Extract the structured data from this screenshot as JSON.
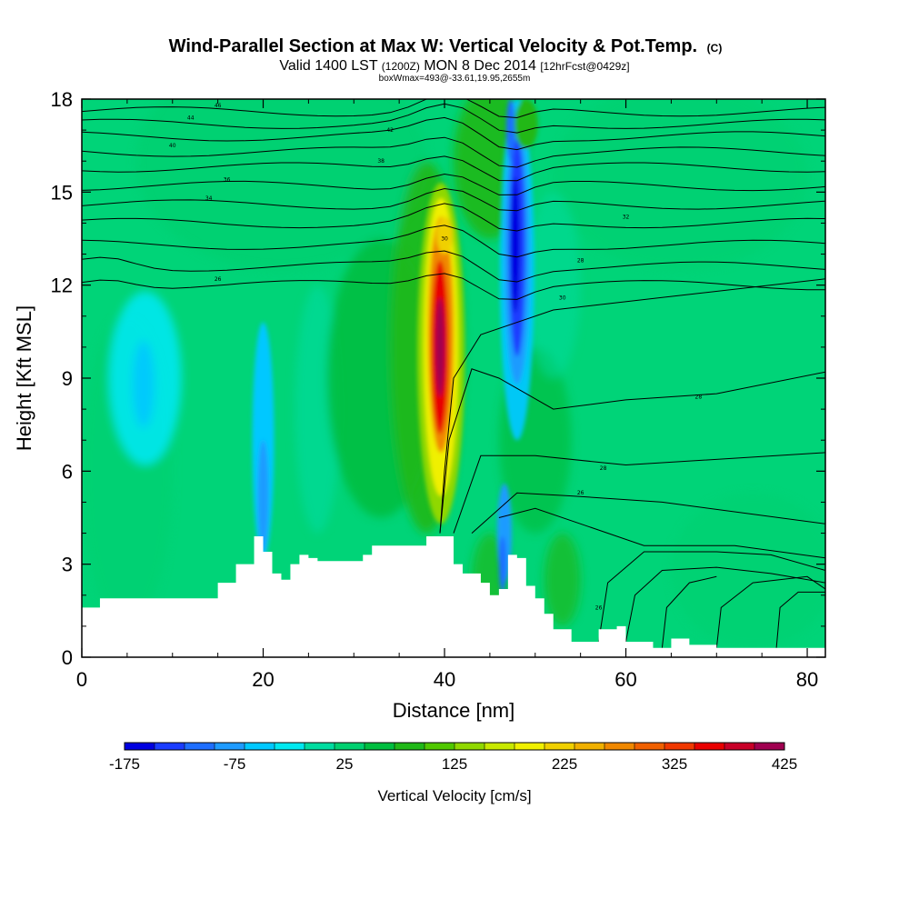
{
  "chart_data": {
    "type": "heatmap",
    "title": "Wind-Parallel Section at Max W: Vertical Velocity & Pot.Temp.",
    "title_mark": "(C)",
    "subtitle_valid": "Valid 1400 LST",
    "subtitle_utc": "(1200Z)",
    "subtitle_date": "MON 8 Dec 2014",
    "subtitle_fcst": "[12hrFcst@0429z]",
    "subtitle_box": "boxWmax=493@-33.61,19.95,2655m",
    "xlabel": "Distance [nm]",
    "ylabel": "Height [Kft MSL]",
    "xlim": [
      0,
      82
    ],
    "ylim": [
      0,
      18
    ],
    "xticks": [
      "0",
      "20",
      "40",
      "60",
      "80"
    ],
    "yticks": [
      "0",
      "3",
      "6",
      "9",
      "12",
      "15",
      "18"
    ],
    "colorbar": {
      "label": "Vertical Velocity [cm/s]",
      "range": [
        -175,
        425
      ],
      "step": 25,
      "ticks": [
        "-175",
        "-75",
        "25",
        "125",
        "225",
        "325",
        "425"
      ],
      "colors": [
        "#0000e0",
        "#1a3cff",
        "#1e6eff",
        "#1e9bff",
        "#00c8ff",
        "#00e8f0",
        "#00dca0",
        "#00d070",
        "#00be40",
        "#20b818",
        "#50c800",
        "#90d800",
        "#c8e800",
        "#f0f000",
        "#f0d000",
        "#f0b000",
        "#f08800",
        "#f06000",
        "#f03800",
        "#e80000",
        "#c80028",
        "#a00050"
      ]
    },
    "terrain_kft": [
      [
        0,
        1.6
      ],
      [
        2,
        1.9
      ],
      [
        14,
        1.9
      ],
      [
        15,
        2.4
      ],
      [
        17,
        3.0
      ],
      [
        19,
        3.9
      ],
      [
        20,
        3.4
      ],
      [
        21,
        2.7
      ],
      [
        22,
        2.5
      ],
      [
        23,
        3.0
      ],
      [
        24,
        3.3
      ],
      [
        25,
        3.2
      ],
      [
        26,
        3.1
      ],
      [
        29,
        3.1
      ],
      [
        31,
        3.3
      ],
      [
        32,
        3.6
      ],
      [
        36,
        3.6
      ],
      [
        38,
        3.9
      ],
      [
        40,
        3.9
      ],
      [
        41,
        3.0
      ],
      [
        42,
        2.7
      ],
      [
        44,
        2.4
      ],
      [
        45,
        2.0
      ],
      [
        46,
        2.2
      ],
      [
        47,
        3.3
      ],
      [
        48,
        3.2
      ],
      [
        49,
        2.3
      ],
      [
        50,
        1.9
      ],
      [
        51,
        1.4
      ],
      [
        52,
        0.9
      ],
      [
        54,
        0.5
      ],
      [
        56,
        0.5
      ],
      [
        57,
        0.9
      ],
      [
        59,
        1.0
      ],
      [
        60,
        0.5
      ],
      [
        63,
        0.3
      ],
      [
        65,
        0.6
      ],
      [
        67,
        0.4
      ],
      [
        70,
        0.3
      ],
      [
        82,
        0.3
      ]
    ],
    "theta_contours_C": [
      "46",
      "44",
      "42",
      "40",
      "38",
      "36",
      "34",
      "32",
      "30",
      "28",
      "26"
    ],
    "updraft_max": {
      "x": 39.5,
      "z": 10.0,
      "w": 425
    },
    "downdraft_min": {
      "x": 48,
      "z": 12.5,
      "w": -175
    }
  }
}
